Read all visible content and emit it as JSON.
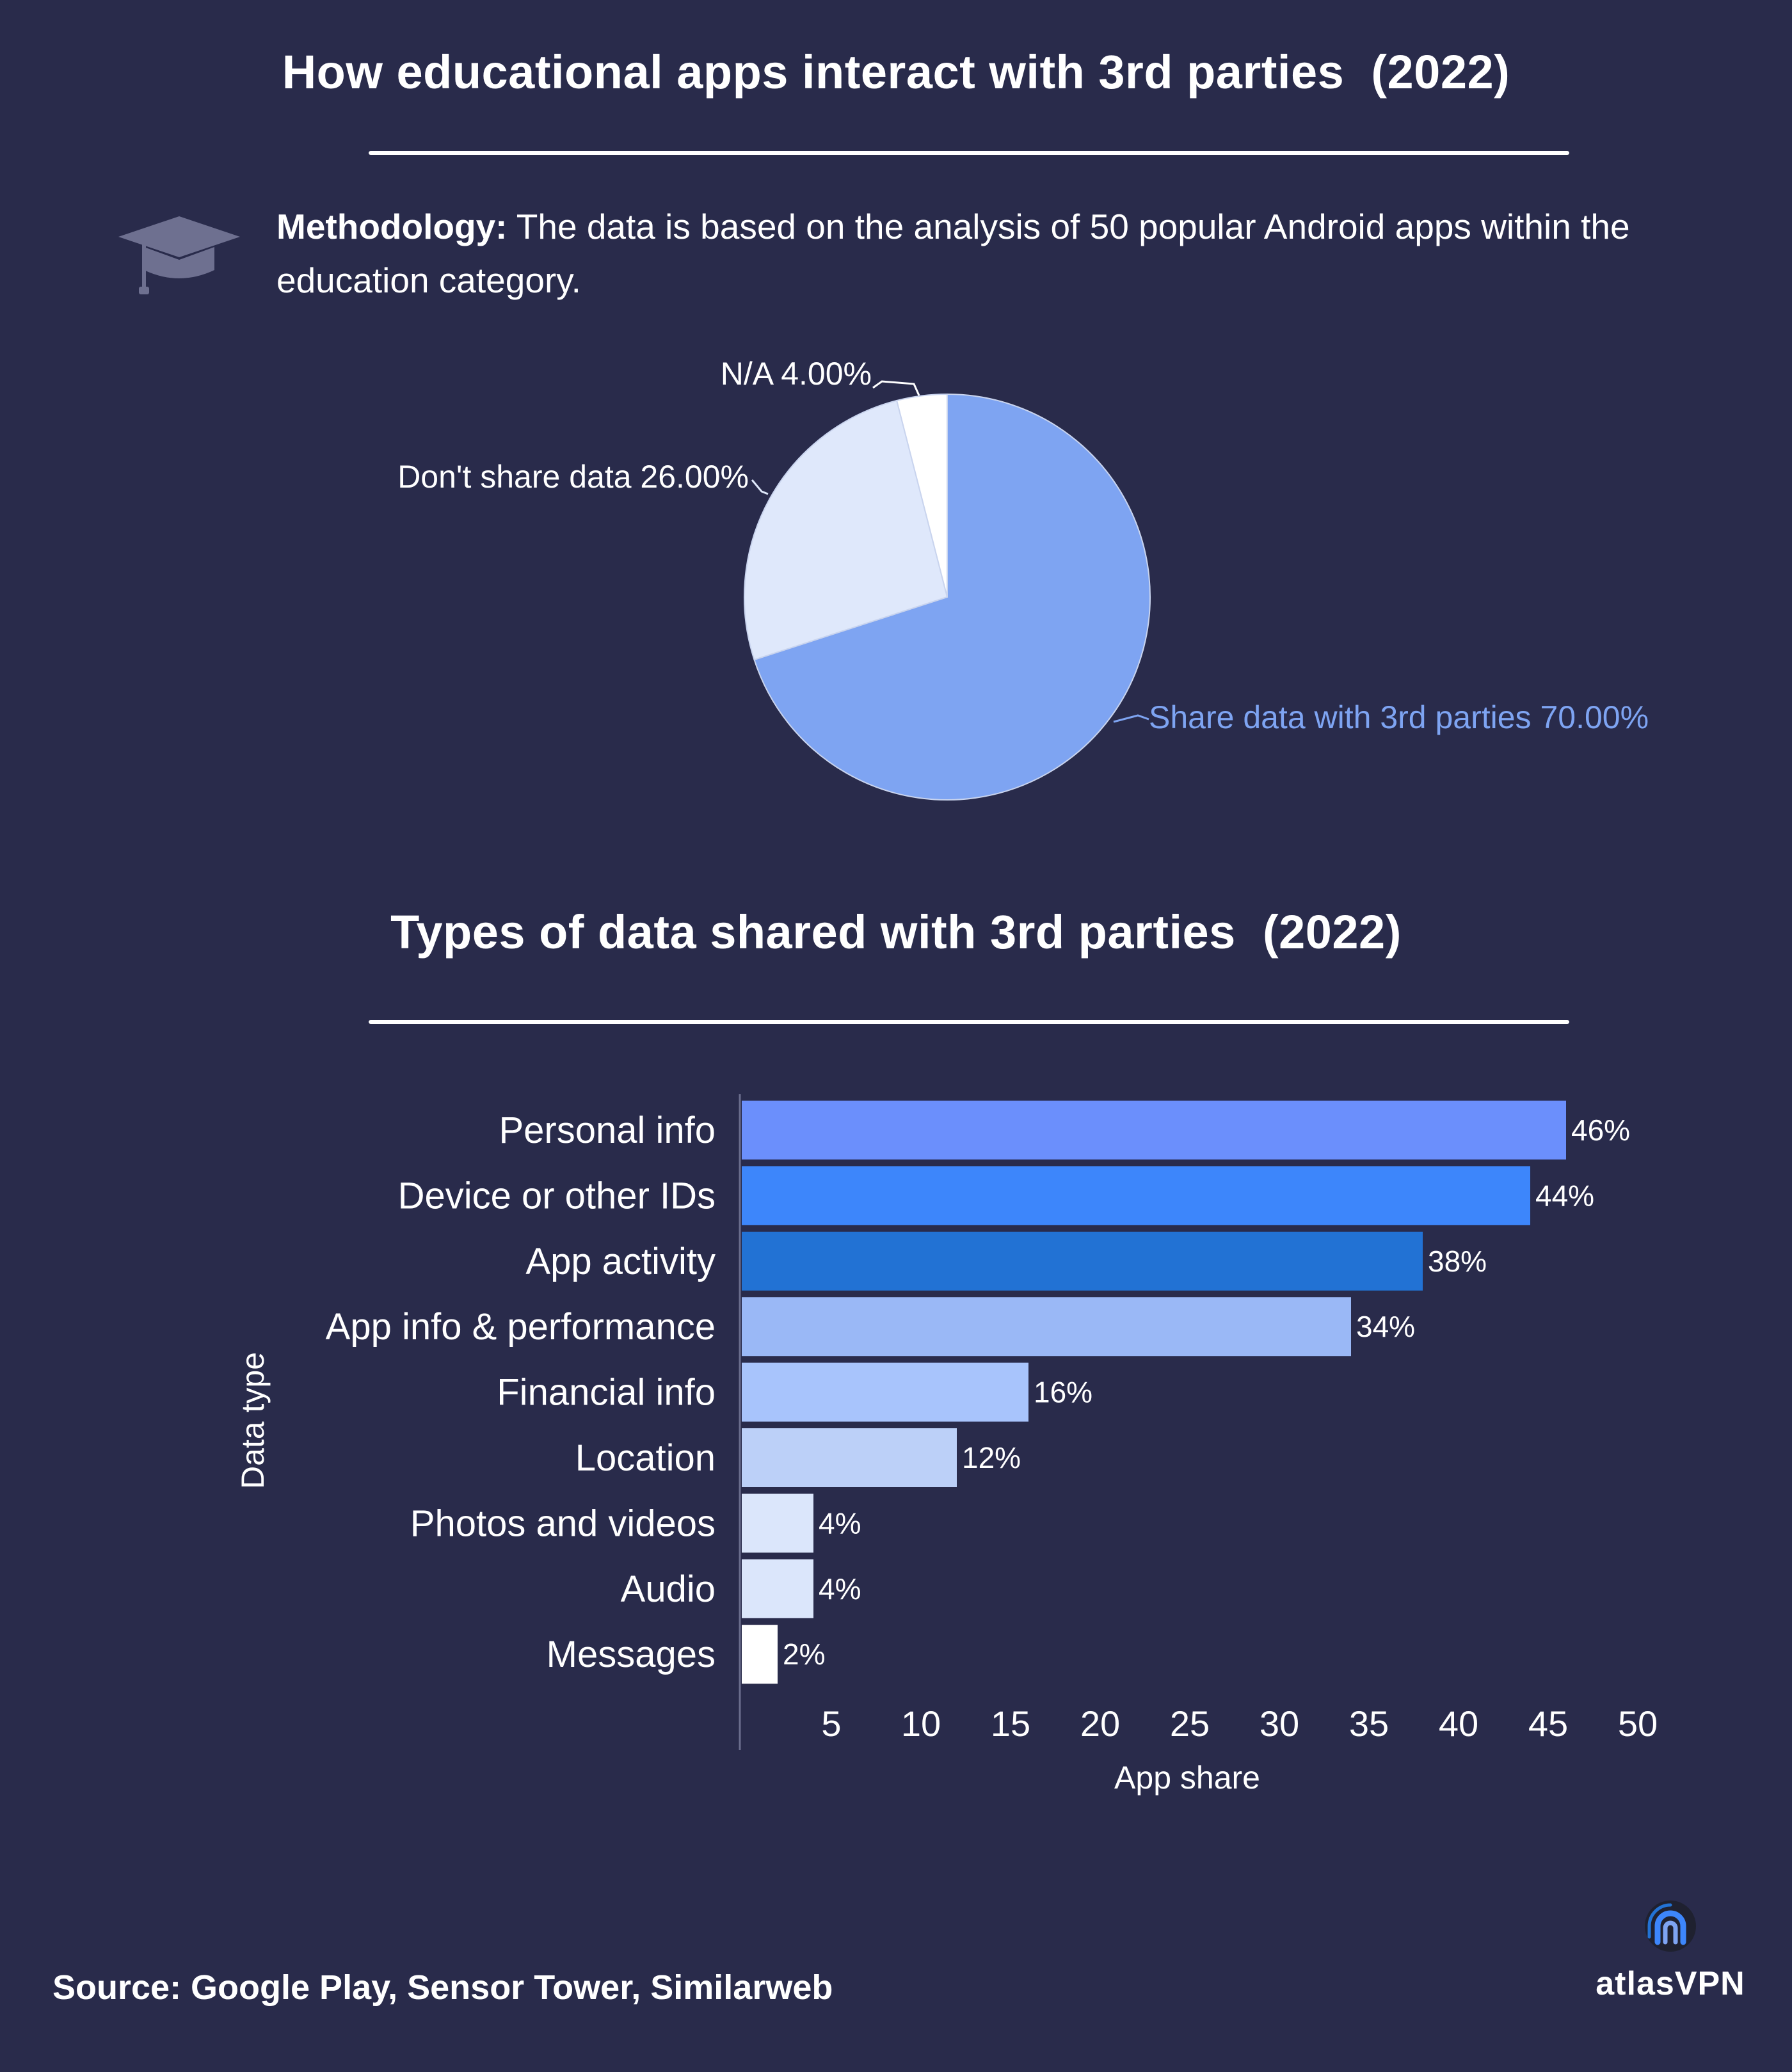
{
  "header": {
    "title": "How educational apps interact with 3rd parties  (2022)",
    "methodology_label": "Methodology:",
    "methodology_text": " The data is based on the analysis of 50 popular Android apps within the education category."
  },
  "icons": {
    "methodology": "graduation-cap-icon",
    "brand": "atlasvpn-logo-icon"
  },
  "pie_chart": {
    "type": "pie",
    "slices": [
      {
        "label": "Share data with 3rd parties 70.00%",
        "value": 70.0,
        "color": "#7ea4f2"
      },
      {
        "label": "Don't share data 26.00%",
        "value": 26.0,
        "color": "#dfe8fb"
      },
      {
        "label": "N/A 4.00%",
        "value": 4.0,
        "color": "#ffffff"
      }
    ]
  },
  "bar_section": {
    "title": "Types of data shared with 3rd parties  (2022)"
  },
  "chart_data": {
    "type": "bar",
    "orientation": "horizontal",
    "categories": [
      "Personal info",
      "Device or other IDs",
      "App activity",
      "App info & performance",
      "Financial info",
      "Location",
      "Photos and videos",
      "Audio",
      "Messages"
    ],
    "values": [
      46,
      44,
      38,
      34,
      16,
      12,
      4,
      4,
      2
    ],
    "data_labels": [
      "46%",
      "44%",
      "38%",
      "34%",
      "16%",
      "12%",
      "4%",
      "4%",
      "2%"
    ],
    "colors": [
      "#6b8ffc",
      "#3d86fb",
      "#2272d4",
      "#9ab8f6",
      "#a8c4fc",
      "#bcd0f8",
      "#dbe6fb",
      "#dbe6fb",
      "#ffffff"
    ],
    "xticks": [
      "5",
      "10",
      "15",
      "20",
      "25",
      "30",
      "35",
      "40",
      "45",
      "50"
    ],
    "xlabel": "App share",
    "ylabel": "Data type"
  },
  "footer": {
    "source": "Source: Google Play, Sensor Tower, Similarweb",
    "brand": "atlasVPN"
  }
}
